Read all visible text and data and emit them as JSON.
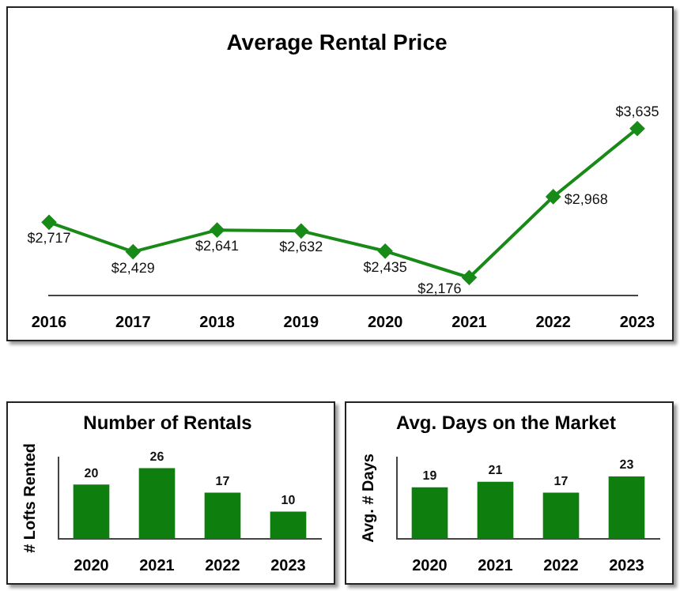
{
  "chart_data": [
    {
      "type": "line",
      "title": "Average Rental Price",
      "categories": [
        "2016",
        "2017",
        "2018",
        "2019",
        "2020",
        "2021",
        "2022",
        "2023"
      ],
      "values": [
        2717,
        2429,
        2641,
        2632,
        2435,
        2176,
        2968,
        3635
      ],
      "value_labels": [
        "$2,717",
        "$2,429",
        "$2,641",
        "$2,632",
        "$2,435",
        "$2,176",
        "$2,968",
        "$3,635"
      ],
      "color": "#178a17",
      "marker": "diamond",
      "grid": false,
      "legend": false
    },
    {
      "type": "bar",
      "title": "Number of Rentals",
      "ylabel": "# Lofts Rented",
      "categories": [
        "2020",
        "2021",
        "2022",
        "2023"
      ],
      "values": [
        20,
        26,
        17,
        10
      ],
      "color": "#0e7f0e",
      "data_labels": true,
      "grid": false,
      "legend": false
    },
    {
      "type": "bar",
      "title": "Avg. Days on the Market",
      "ylabel": "Avg. # Days",
      "categories": [
        "2020",
        "2021",
        "2022",
        "2023"
      ],
      "values": [
        19,
        21,
        17,
        23
      ],
      "color": "#0e7f0e",
      "data_labels": true,
      "grid": false,
      "legend": false
    }
  ]
}
